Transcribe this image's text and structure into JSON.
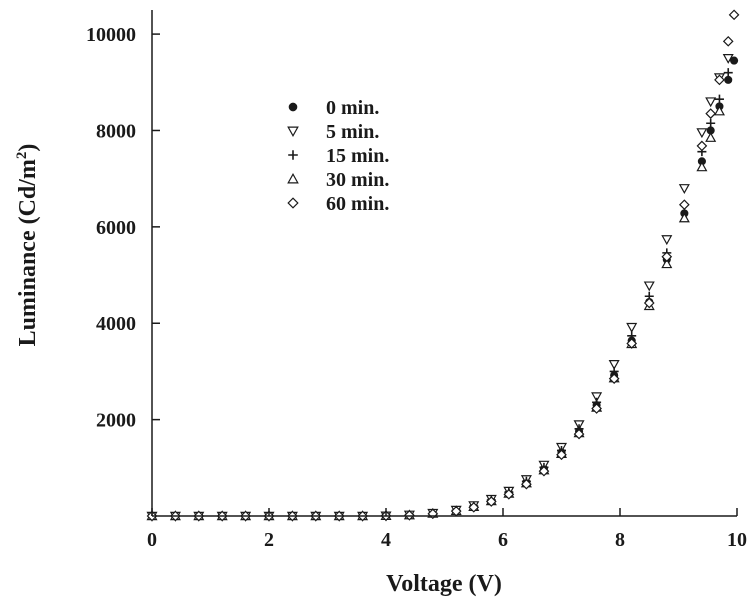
{
  "chart_data": {
    "type": "scatter",
    "title": "",
    "xlabel": "Voltage (V)",
    "ylabel_main": "Luminance (Cd/m",
    "ylabel_sup": "2",
    "ylabel_close": ")",
    "xlim": [
      0,
      10
    ],
    "ylim": [
      0,
      10500
    ],
    "x_ticks": [
      0,
      2,
      4,
      6,
      8,
      10
    ],
    "x_tick_labels": [
      "0",
      "2",
      "4",
      "6",
      "8",
      "10"
    ],
    "y_ticks": [
      2000,
      4000,
      6000,
      8000,
      10000
    ],
    "y_tick_labels": [
      "2000",
      "4000",
      "6000",
      "8000",
      "10000"
    ],
    "grid": false,
    "legend_position": "upper-left inside",
    "series": [
      {
        "name": "0 min.",
        "marker": "filled-circle",
        "points": [
          [
            0.0,
            0
          ],
          [
            0.4,
            0
          ],
          [
            0.8,
            0
          ],
          [
            1.2,
            0
          ],
          [
            1.6,
            0
          ],
          [
            2.0,
            0
          ],
          [
            2.4,
            0
          ],
          [
            2.8,
            0
          ],
          [
            3.2,
            0
          ],
          [
            3.6,
            0
          ],
          [
            4.0,
            5
          ],
          [
            4.4,
            20
          ],
          [
            4.8,
            50
          ],
          [
            5.2,
            110
          ],
          [
            5.5,
            200
          ],
          [
            5.8,
            320
          ],
          [
            6.1,
            480
          ],
          [
            6.4,
            700
          ],
          [
            6.7,
            980
          ],
          [
            7.0,
            1320
          ],
          [
            7.3,
            1760
          ],
          [
            7.6,
            2300
          ],
          [
            7.9,
            2920
          ],
          [
            8.2,
            3640
          ],
          [
            8.5,
            4440
          ],
          [
            8.8,
            5320
          ],
          [
            9.1,
            6280
          ],
          [
            9.4,
            7360
          ],
          [
            9.55,
            8000
          ],
          [
            9.7,
            8500
          ],
          [
            9.85,
            9050
          ],
          [
            9.95,
            9450
          ]
        ]
      },
      {
        "name": "5 min.",
        "marker": "down-triangle",
        "points": [
          [
            0.0,
            0
          ],
          [
            0.4,
            0
          ],
          [
            0.8,
            0
          ],
          [
            1.2,
            0
          ],
          [
            1.6,
            0
          ],
          [
            2.0,
            0
          ],
          [
            2.4,
            0
          ],
          [
            2.8,
            0
          ],
          [
            3.2,
            0
          ],
          [
            3.6,
            0
          ],
          [
            4.0,
            5
          ],
          [
            4.4,
            25
          ],
          [
            4.8,
            60
          ],
          [
            5.2,
            125
          ],
          [
            5.5,
            220
          ],
          [
            5.8,
            350
          ],
          [
            6.1,
            520
          ],
          [
            6.4,
            760
          ],
          [
            6.7,
            1060
          ],
          [
            7.0,
            1430
          ],
          [
            7.3,
            1900
          ],
          [
            7.6,
            2480
          ],
          [
            7.9,
            3150
          ],
          [
            8.2,
            3920
          ],
          [
            8.5,
            4780
          ],
          [
            8.8,
            5740
          ],
          [
            9.1,
            6800
          ],
          [
            9.4,
            7960
          ],
          [
            9.55,
            8600
          ],
          [
            9.7,
            9100
          ],
          [
            9.85,
            9500
          ]
        ]
      },
      {
        "name": "15 min.",
        "marker": "plus",
        "points": [
          [
            0.0,
            0
          ],
          [
            0.4,
            0
          ],
          [
            0.8,
            0
          ],
          [
            1.2,
            0
          ],
          [
            1.6,
            0
          ],
          [
            2.0,
            0
          ],
          [
            2.4,
            0
          ],
          [
            2.8,
            0
          ],
          [
            3.2,
            0
          ],
          [
            3.6,
            0
          ],
          [
            4.0,
            5
          ],
          [
            4.4,
            20
          ],
          [
            4.8,
            55
          ],
          [
            5.2,
            115
          ],
          [
            5.5,
            205
          ],
          [
            5.8,
            330
          ],
          [
            6.1,
            495
          ],
          [
            6.4,
            720
          ],
          [
            6.7,
            1010
          ],
          [
            7.0,
            1360
          ],
          [
            7.3,
            1810
          ],
          [
            7.6,
            2360
          ],
          [
            7.9,
            3000
          ],
          [
            8.2,
            3740
          ],
          [
            8.5,
            4560
          ],
          [
            8.8,
            5460
          ],
          [
            9.1,
            6460
          ],
          [
            9.4,
            7560
          ],
          [
            9.55,
            8150
          ],
          [
            9.7,
            8650
          ],
          [
            9.85,
            9200
          ]
        ]
      },
      {
        "name": "30 min.",
        "marker": "up-triangle",
        "points": [
          [
            0.0,
            0
          ],
          [
            0.4,
            0
          ],
          [
            0.8,
            0
          ],
          [
            1.2,
            0
          ],
          [
            1.6,
            0
          ],
          [
            2.0,
            0
          ],
          [
            2.4,
            0
          ],
          [
            2.8,
            0
          ],
          [
            3.2,
            0
          ],
          [
            3.6,
            0
          ],
          [
            4.0,
            5
          ],
          [
            4.4,
            18
          ],
          [
            4.8,
            50
          ],
          [
            5.2,
            105
          ],
          [
            5.5,
            190
          ],
          [
            5.8,
            310
          ],
          [
            6.1,
            465
          ],
          [
            6.4,
            680
          ],
          [
            6.7,
            950
          ],
          [
            7.0,
            1290
          ],
          [
            7.3,
            1720
          ],
          [
            7.6,
            2250
          ],
          [
            7.9,
            2860
          ],
          [
            8.2,
            3570
          ],
          [
            8.5,
            4360
          ],
          [
            8.8,
            5230
          ],
          [
            9.1,
            6180
          ],
          [
            9.4,
            7240
          ],
          [
            9.55,
            7850
          ],
          [
            9.7,
            8400
          ]
        ]
      },
      {
        "name": "60 min.",
        "marker": "diamond",
        "points": [
          [
            0.0,
            0
          ],
          [
            0.4,
            0
          ],
          [
            0.8,
            0
          ],
          [
            1.2,
            0
          ],
          [
            1.6,
            0
          ],
          [
            2.0,
            0
          ],
          [
            2.4,
            0
          ],
          [
            2.8,
            0
          ],
          [
            3.2,
            0
          ],
          [
            3.6,
            0
          ],
          [
            4.0,
            5
          ],
          [
            4.4,
            15
          ],
          [
            4.8,
            45
          ],
          [
            5.2,
            100
          ],
          [
            5.5,
            180
          ],
          [
            5.8,
            300
          ],
          [
            6.1,
            450
          ],
          [
            6.4,
            660
          ],
          [
            6.7,
            930
          ],
          [
            7.0,
            1270
          ],
          [
            7.3,
            1700
          ],
          [
            7.6,
            2230
          ],
          [
            7.9,
            2850
          ],
          [
            8.2,
            3580
          ],
          [
            8.5,
            4420
          ],
          [
            8.8,
            5380
          ],
          [
            9.1,
            6460
          ],
          [
            9.4,
            7680
          ],
          [
            9.55,
            8350
          ],
          [
            9.7,
            9050
          ],
          [
            9.85,
            9850
          ],
          [
            9.95,
            10400
          ]
        ]
      }
    ]
  }
}
